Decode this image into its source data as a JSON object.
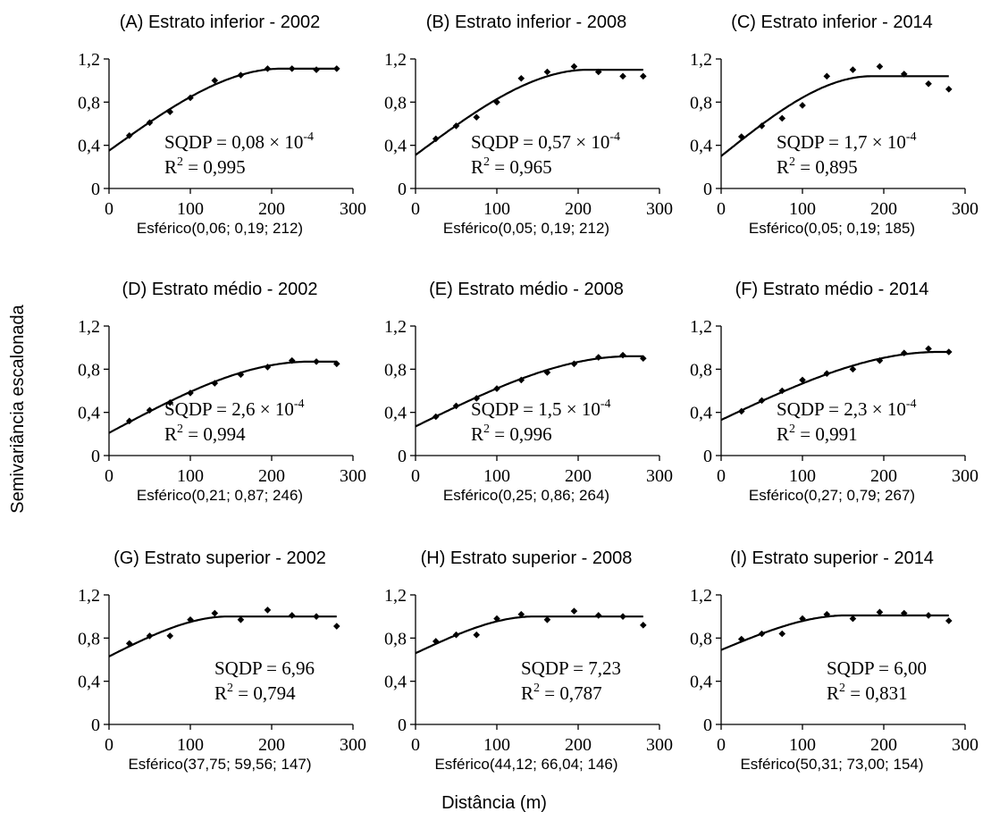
{
  "figure": {
    "ylabel": "Semivariância escalonada",
    "xlabel": "Distância (m)"
  },
  "chart_data": [
    {
      "type": "scatter",
      "title": "(A) Estrato inferior - 2002",
      "model_label": "Esférico(0,06; 0,19; 212)",
      "annotation": {
        "sqdp_base": "SQDP = 0,08 × 10",
        "sqdp_exp": "-4",
        "r2_value": " = 0,995"
      },
      "xlim": [
        0,
        300
      ],
      "ylim": [
        0,
        1.2
      ],
      "x_ticks": [
        "0",
        "100",
        "200",
        "300"
      ],
      "y_ticks": [
        "0",
        "0,4",
        "0,8",
        "1,2"
      ],
      "points": [
        [
          25,
          0.49
        ],
        [
          50,
          0.61
        ],
        [
          75,
          0.71
        ],
        [
          100,
          0.84
        ],
        [
          130,
          1.0
        ],
        [
          162,
          1.05
        ],
        [
          195,
          1.11
        ],
        [
          225,
          1.11
        ],
        [
          255,
          1.1
        ],
        [
          280,
          1.11
        ]
      ],
      "model": {
        "nugget": 0.35,
        "sill": 1.11,
        "range": 212
      }
    },
    {
      "type": "scatter",
      "title": "(B) Estrato inferior - 2008",
      "model_label": "Esférico(0,05; 0,19; 212)",
      "annotation": {
        "sqdp_base": "SQDP = 0,57 × 10",
        "sqdp_exp": "-4",
        "r2_value": " = 0,965"
      },
      "xlim": [
        0,
        300
      ],
      "ylim": [
        0,
        1.2
      ],
      "x_ticks": [
        "0",
        "100",
        "200",
        "300"
      ],
      "y_ticks": [
        "0",
        "0,4",
        "0,8",
        "1,2"
      ],
      "points": [
        [
          25,
          0.46
        ],
        [
          50,
          0.58
        ],
        [
          75,
          0.66
        ],
        [
          100,
          0.8
        ],
        [
          130,
          1.02
        ],
        [
          162,
          1.08
        ],
        [
          195,
          1.13
        ],
        [
          225,
          1.08
        ],
        [
          255,
          1.04
        ],
        [
          280,
          1.04
        ]
      ],
      "model": {
        "nugget": 0.31,
        "sill": 1.1,
        "range": 212
      }
    },
    {
      "type": "scatter",
      "title": "(C) Estrato inferior - 2014",
      "model_label": "Esférico(0,05; 0,19; 185)",
      "annotation": {
        "sqdp_base": "SQDP = 1,7 × 10",
        "sqdp_exp": "-4",
        "r2_value": " = 0,895"
      },
      "xlim": [
        0,
        300
      ],
      "ylim": [
        0,
        1.2
      ],
      "x_ticks": [
        "0",
        "100",
        "200",
        "300"
      ],
      "y_ticks": [
        "0",
        "0,4",
        "0,8",
        "1,2"
      ],
      "points": [
        [
          25,
          0.48
        ],
        [
          50,
          0.58
        ],
        [
          75,
          0.65
        ],
        [
          100,
          0.77
        ],
        [
          130,
          1.04
        ],
        [
          162,
          1.1
        ],
        [
          195,
          1.13
        ],
        [
          225,
          1.06
        ],
        [
          255,
          0.97
        ],
        [
          280,
          0.92
        ]
      ],
      "model": {
        "nugget": 0.3,
        "sill": 1.04,
        "range": 185
      }
    },
    {
      "type": "scatter",
      "title": "(D) Estrato médio - 2002",
      "model_label": "Esférico(0,21; 0,87; 246)",
      "annotation": {
        "sqdp_base": "SQDP = 2,6 × 10",
        "sqdp_exp": "-4",
        "r2_value": " = 0,994"
      },
      "xlim": [
        0,
        300
      ],
      "ylim": [
        0,
        1.2
      ],
      "x_ticks": [
        "0",
        "100",
        "200",
        "300"
      ],
      "y_ticks": [
        "0",
        "0,4",
        "0,8",
        "1,2"
      ],
      "points": [
        [
          25,
          0.32
        ],
        [
          50,
          0.42
        ],
        [
          75,
          0.49
        ],
        [
          100,
          0.58
        ],
        [
          130,
          0.67
        ],
        [
          162,
          0.75
        ],
        [
          195,
          0.82
        ],
        [
          225,
          0.88
        ],
        [
          255,
          0.87
        ],
        [
          280,
          0.85
        ]
      ],
      "model": {
        "nugget": 0.21,
        "sill": 0.87,
        "range": 246
      }
    },
    {
      "type": "scatter",
      "title": "(E) Estrato médio - 2008",
      "model_label": "Esférico(0,25; 0,86; 264)",
      "annotation": {
        "sqdp_base": "SQDP = 1,5 × 10",
        "sqdp_exp": "-4",
        "r2_value": " = 0,996"
      },
      "xlim": [
        0,
        300
      ],
      "ylim": [
        0,
        1.2
      ],
      "x_ticks": [
        "0",
        "100",
        "200",
        "300"
      ],
      "y_ticks": [
        "0",
        "0,4",
        "0,8",
        "1,2"
      ],
      "points": [
        [
          25,
          0.36
        ],
        [
          50,
          0.46
        ],
        [
          75,
          0.53
        ],
        [
          100,
          0.62
        ],
        [
          130,
          0.7
        ],
        [
          162,
          0.77
        ],
        [
          195,
          0.85
        ],
        [
          225,
          0.91
        ],
        [
          255,
          0.93
        ],
        [
          280,
          0.9
        ]
      ],
      "model": {
        "nugget": 0.27,
        "sill": 0.92,
        "range": 264
      }
    },
    {
      "type": "scatter",
      "title": "(F) Estrato médio - 2014",
      "model_label": "Esférico(0,27; 0,79; 267)",
      "annotation": {
        "sqdp_base": "SQDP = 2,3 × 10",
        "sqdp_exp": "-4",
        "r2_value": " = 0,991"
      },
      "xlim": [
        0,
        300
      ],
      "ylim": [
        0,
        1.2
      ],
      "x_ticks": [
        "0",
        "100",
        "200",
        "300"
      ],
      "y_ticks": [
        "0",
        "0,4",
        "0,8",
        "1,2"
      ],
      "points": [
        [
          25,
          0.41
        ],
        [
          50,
          0.51
        ],
        [
          75,
          0.6
        ],
        [
          100,
          0.7
        ],
        [
          130,
          0.76
        ],
        [
          162,
          0.8
        ],
        [
          195,
          0.88
        ],
        [
          225,
          0.95
        ],
        [
          255,
          0.99
        ],
        [
          280,
          0.96
        ]
      ],
      "model": {
        "nugget": 0.33,
        "sill": 0.96,
        "range": 267
      }
    },
    {
      "type": "scatter",
      "title": "(G) Estrato superior - 2002",
      "model_label": "Esférico(37,75; 59,56; 147)",
      "annotation": {
        "sqdp_base": "SQDP = 6,96",
        "sqdp_exp": "",
        "r2_value": " = 0,794"
      },
      "xlim": [
        0,
        300
      ],
      "ylim": [
        0,
        1.2
      ],
      "x_ticks": [
        "0",
        "100",
        "200",
        "300"
      ],
      "y_ticks": [
        "0",
        "0,4",
        "0,8",
        "1,2"
      ],
      "points": [
        [
          25,
          0.75
        ],
        [
          50,
          0.82
        ],
        [
          75,
          0.82
        ],
        [
          100,
          0.97
        ],
        [
          130,
          1.03
        ],
        [
          162,
          0.97
        ],
        [
          195,
          1.06
        ],
        [
          225,
          1.01
        ],
        [
          255,
          1.0
        ],
        [
          280,
          0.91
        ]
      ],
      "model": {
        "nugget": 0.63,
        "sill": 1.0,
        "range": 147
      }
    },
    {
      "type": "scatter",
      "title": "(H) Estrato superior - 2008",
      "model_label": "Esférico(44,12; 66,04; 146)",
      "annotation": {
        "sqdp_base": "SQDP = 7,23",
        "sqdp_exp": "",
        "r2_value": " = 0,787"
      },
      "xlim": [
        0,
        300
      ],
      "ylim": [
        0,
        1.2
      ],
      "x_ticks": [
        "0",
        "100",
        "200",
        "300"
      ],
      "y_ticks": [
        "0",
        "0,4",
        "0,8",
        "1,2"
      ],
      "points": [
        [
          25,
          0.77
        ],
        [
          50,
          0.83
        ],
        [
          75,
          0.83
        ],
        [
          100,
          0.98
        ],
        [
          130,
          1.02
        ],
        [
          162,
          0.97
        ],
        [
          195,
          1.05
        ],
        [
          225,
          1.01
        ],
        [
          255,
          1.0
        ],
        [
          280,
          0.92
        ]
      ],
      "model": {
        "nugget": 0.66,
        "sill": 1.0,
        "range": 146
      }
    },
    {
      "type": "scatter",
      "title": "(I) Estrato superior - 2014",
      "model_label": "Esférico(50,31; 73,00; 154)",
      "annotation": {
        "sqdp_base": "SQDP = 6,00",
        "sqdp_exp": "",
        "r2_value": " = 0,831"
      },
      "xlim": [
        0,
        300
      ],
      "ylim": [
        0,
        1.2
      ],
      "x_ticks": [
        "0",
        "100",
        "200",
        "300"
      ],
      "y_ticks": [
        "0",
        "0,4",
        "0,8",
        "1,2"
      ],
      "points": [
        [
          25,
          0.79
        ],
        [
          50,
          0.84
        ],
        [
          75,
          0.84
        ],
        [
          100,
          0.98
        ],
        [
          130,
          1.02
        ],
        [
          162,
          0.98
        ],
        [
          195,
          1.04
        ],
        [
          225,
          1.03
        ],
        [
          255,
          1.01
        ],
        [
          280,
          0.96
        ]
      ],
      "model": {
        "nugget": 0.69,
        "sill": 1.01,
        "range": 154
      }
    }
  ]
}
